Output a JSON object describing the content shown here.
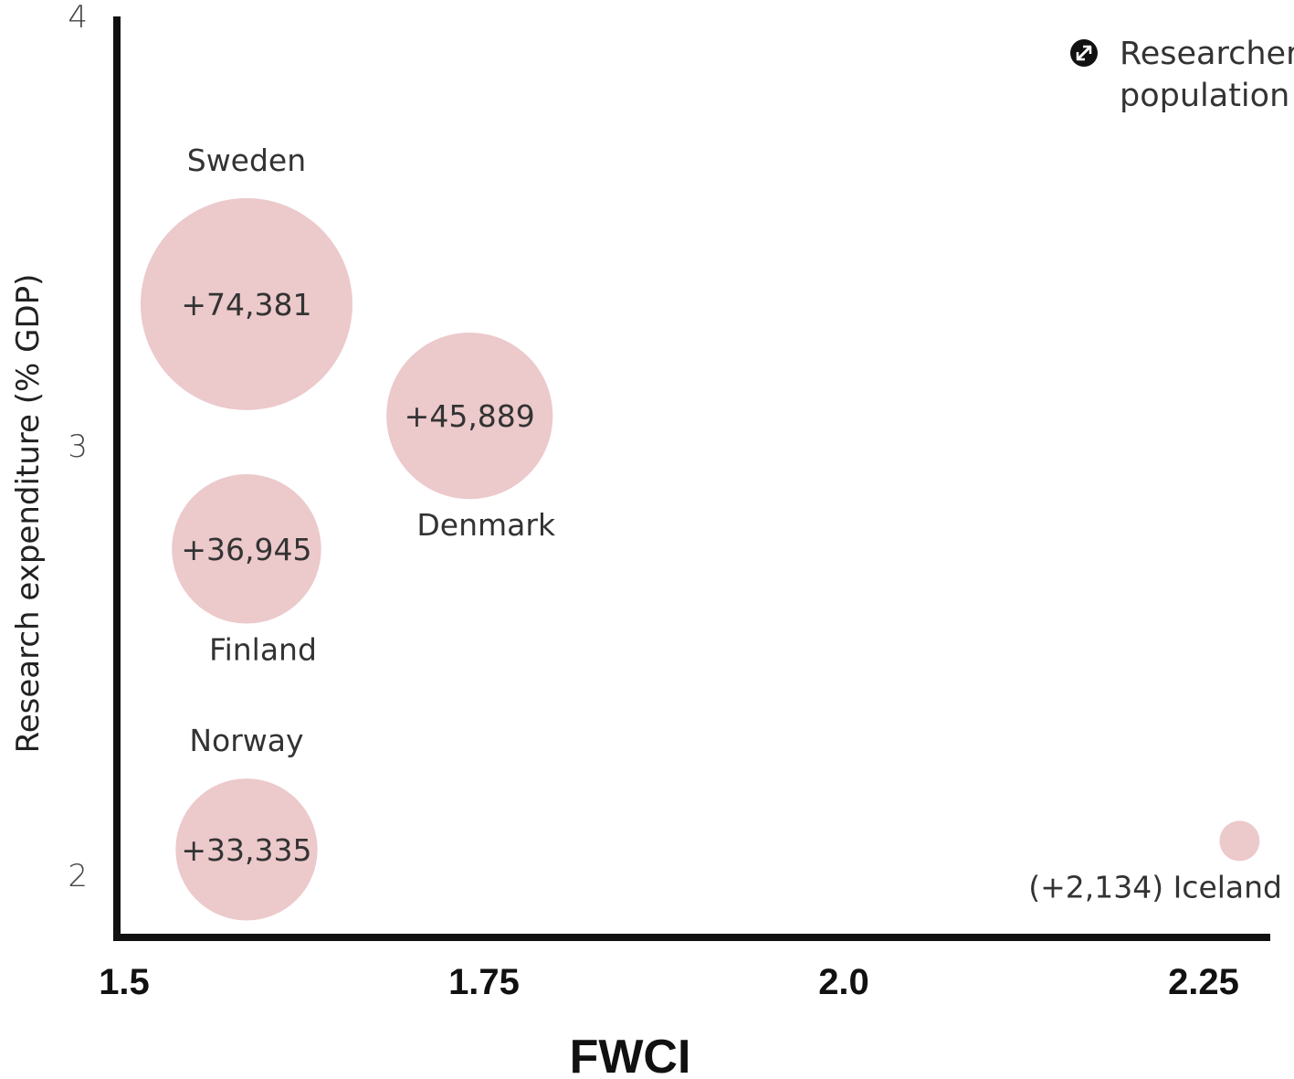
{
  "chart_data": {
    "type": "scatter",
    "title": "",
    "xlabel": "FWCI",
    "ylabel": "Research expenditure (% GDP)",
    "xlim": [
      1.5,
      2.28
    ],
    "ylim": [
      1.86,
      4.0
    ],
    "x_ticks": [
      {
        "value": 1.5,
        "label": "1.5"
      },
      {
        "value": 1.75,
        "label": "1.75"
      },
      {
        "value": 2.0,
        "label": "2.0"
      },
      {
        "value": 2.25,
        "label": "2.25"
      }
    ],
    "y_ticks": [
      {
        "value": 2,
        "label": "2"
      },
      {
        "value": 3,
        "label": "3"
      },
      {
        "value": 4,
        "label": "4"
      }
    ],
    "bubble_color": "#ecc9cb",
    "legend": {
      "icon": "resize-arrow-icon",
      "label_line1": "Researcher",
      "label_line2": "population",
      "position": "top-right"
    },
    "points": [
      {
        "country": "Sweden",
        "x": 1.585,
        "y": 3.33,
        "population": 74381,
        "value_label": "+74,381",
        "country_label_position": "above"
      },
      {
        "country": "Denmark",
        "x": 1.74,
        "y": 3.07,
        "population": 45889,
        "value_label": "+45,889",
        "country_label_position": "below"
      },
      {
        "country": "Finland",
        "x": 1.585,
        "y": 2.76,
        "population": 36945,
        "value_label": "+36,945",
        "country_label_position": "below"
      },
      {
        "country": "Norway",
        "x": 1.585,
        "y": 2.06,
        "population": 33335,
        "value_label": "+33,335",
        "country_label_position": "above"
      },
      {
        "country": "Iceland",
        "x": 2.275,
        "y": 2.08,
        "population": 2134,
        "value_label": "(+2,134) Iceland",
        "country_label_position": "combined"
      }
    ]
  }
}
